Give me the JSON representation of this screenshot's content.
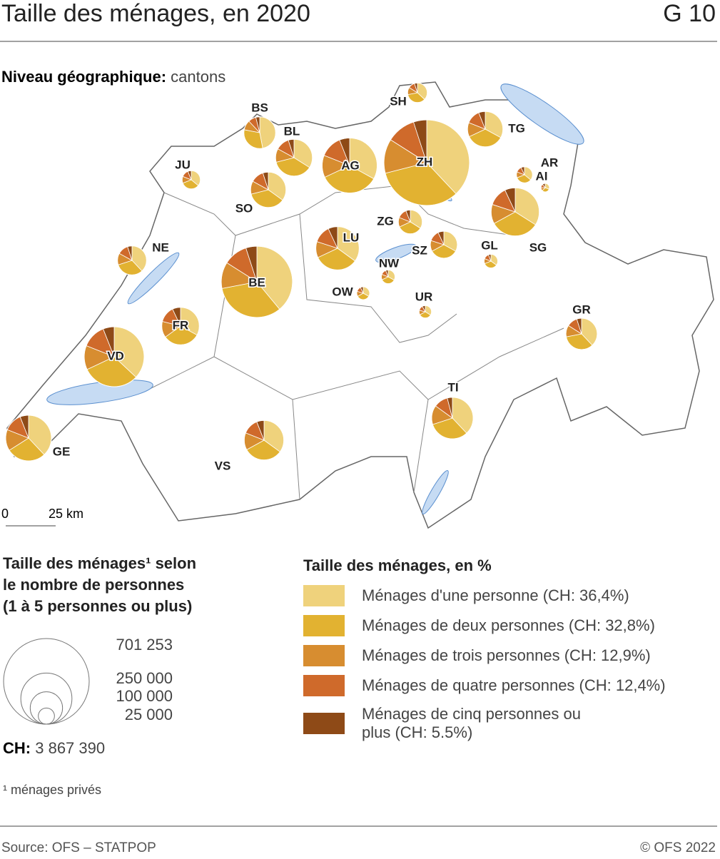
{
  "header": {
    "title": "Taille des ménages, en 2020",
    "code": "G 10"
  },
  "map_level": {
    "label": "Niveau géographique:",
    "value": "cantons"
  },
  "scale_bar": {
    "start": "0",
    "end": "25 km"
  },
  "chart_data": {
    "type": "pie-map",
    "legend_title": "Taille des ménages, en %",
    "series": [
      {
        "name": "Ménages d'une personne (CH: 36,4%)",
        "color": "#efd27c"
      },
      {
        "name": "Ménages de deux personnes (CH: 32,8%)",
        "color": "#e2b231"
      },
      {
        "name": "Ménages de trois personnes (CH: 12,9%)",
        "color": "#d78d30"
      },
      {
        "name": "Ménages de quatre personnes (CH: 12,4%)",
        "color": "#cf6a2b"
      },
      {
        "name": "Ménages de cinq personnes ou plus (CH: 5.5%)",
        "color": "#8e4a17"
      }
    ],
    "cantons": [
      {
        "label": "ZH",
        "total": 701253,
        "values": [
          38,
          33,
          13,
          11,
          5
        ]
      },
      {
        "label": "BE",
        "total": 486000,
        "values": [
          39,
          33,
          12,
          11,
          5
        ]
      },
      {
        "label": "VD",
        "total": 344000,
        "values": [
          37,
          31,
          13,
          13,
          6
        ]
      },
      {
        "label": "AG",
        "total": 290000,
        "values": [
          33,
          35,
          13,
          13,
          6
        ]
      },
      {
        "label": "SG",
        "total": 222000,
        "values": [
          34,
          33,
          13,
          13,
          7
        ]
      },
      {
        "label": "GE",
        "total": 200000,
        "values": [
          38,
          28,
          15,
          13,
          6
        ]
      },
      {
        "label": "LU",
        "total": 180000,
        "values": [
          35,
          33,
          12,
          13,
          7
        ]
      },
      {
        "label": "TI",
        "total": 165000,
        "values": [
          38,
          32,
          15,
          11,
          4
        ]
      },
      {
        "label": "VS",
        "total": 150000,
        "values": [
          35,
          32,
          14,
          13,
          6
        ]
      },
      {
        "label": "FR",
        "total": 135000,
        "values": [
          33,
          32,
          14,
          14,
          7
        ]
      },
      {
        "label": "BL",
        "total": 130000,
        "values": [
          34,
          37,
          12,
          12,
          5
        ]
      },
      {
        "label": "SO",
        "total": 120000,
        "values": [
          35,
          36,
          12,
          12,
          5
        ]
      },
      {
        "label": "TG",
        "total": 120000,
        "values": [
          33,
          35,
          13,
          13,
          6
        ]
      },
      {
        "label": "GR",
        "total": 94000,
        "values": [
          38,
          34,
          12,
          11,
          5
        ]
      },
      {
        "label": "BS",
        "total": 97000,
        "values": [
          47,
          31,
          10,
          8,
          4
        ]
      },
      {
        "label": "NE",
        "total": 81000,
        "values": [
          38,
          32,
          13,
          12,
          5
        ]
      },
      {
        "label": "SZ",
        "total": 70000,
        "values": [
          33,
          34,
          13,
          13,
          7
        ]
      },
      {
        "label": "ZG",
        "total": 55000,
        "values": [
          34,
          34,
          13,
          13,
          6
        ]
      },
      {
        "label": "SH",
        "total": 37000,
        "values": [
          37,
          35,
          12,
          11,
          5
        ]
      },
      {
        "label": "JU",
        "total": 32000,
        "values": [
          36,
          33,
          12,
          13,
          6
        ]
      },
      {
        "label": "AR",
        "total": 25000,
        "values": [
          36,
          33,
          12,
          12,
          7
        ]
      },
      {
        "label": "NW",
        "total": 18000,
        "values": [
          33,
          35,
          13,
          13,
          6
        ]
      },
      {
        "label": "GL",
        "total": 18000,
        "values": [
          35,
          34,
          12,
          13,
          6
        ]
      },
      {
        "label": "OW",
        "total": 16000,
        "values": [
          33,
          34,
          13,
          13,
          7
        ]
      },
      {
        "label": "UR",
        "total": 15000,
        "values": [
          34,
          33,
          12,
          13,
          8
        ]
      },
      {
        "label": "AI",
        "total": 7000,
        "values": [
          31,
          31,
          13,
          14,
          11
        ]
      }
    ],
    "size_legend": {
      "title_lines": [
        "Taille des ménages¹ selon",
        "le nombre de personnes",
        "(1 à 5 personnes ou plus)"
      ],
      "sizes": [
        {
          "value": 701253,
          "label": "701 253"
        },
        {
          "value": 250000,
          "label": "250 000"
        },
        {
          "value": 100000,
          "label": "100 000"
        },
        {
          "value": 25000,
          "label": "25 000"
        }
      ],
      "total_label": "CH:",
      "total": {
        "value": 3867390,
        "label": "3 867 390"
      }
    }
  },
  "footnote": "¹ ménages privés",
  "footer": {
    "source": "Source: OFS – STATPOP",
    "copyright": "© OFS 2022"
  }
}
